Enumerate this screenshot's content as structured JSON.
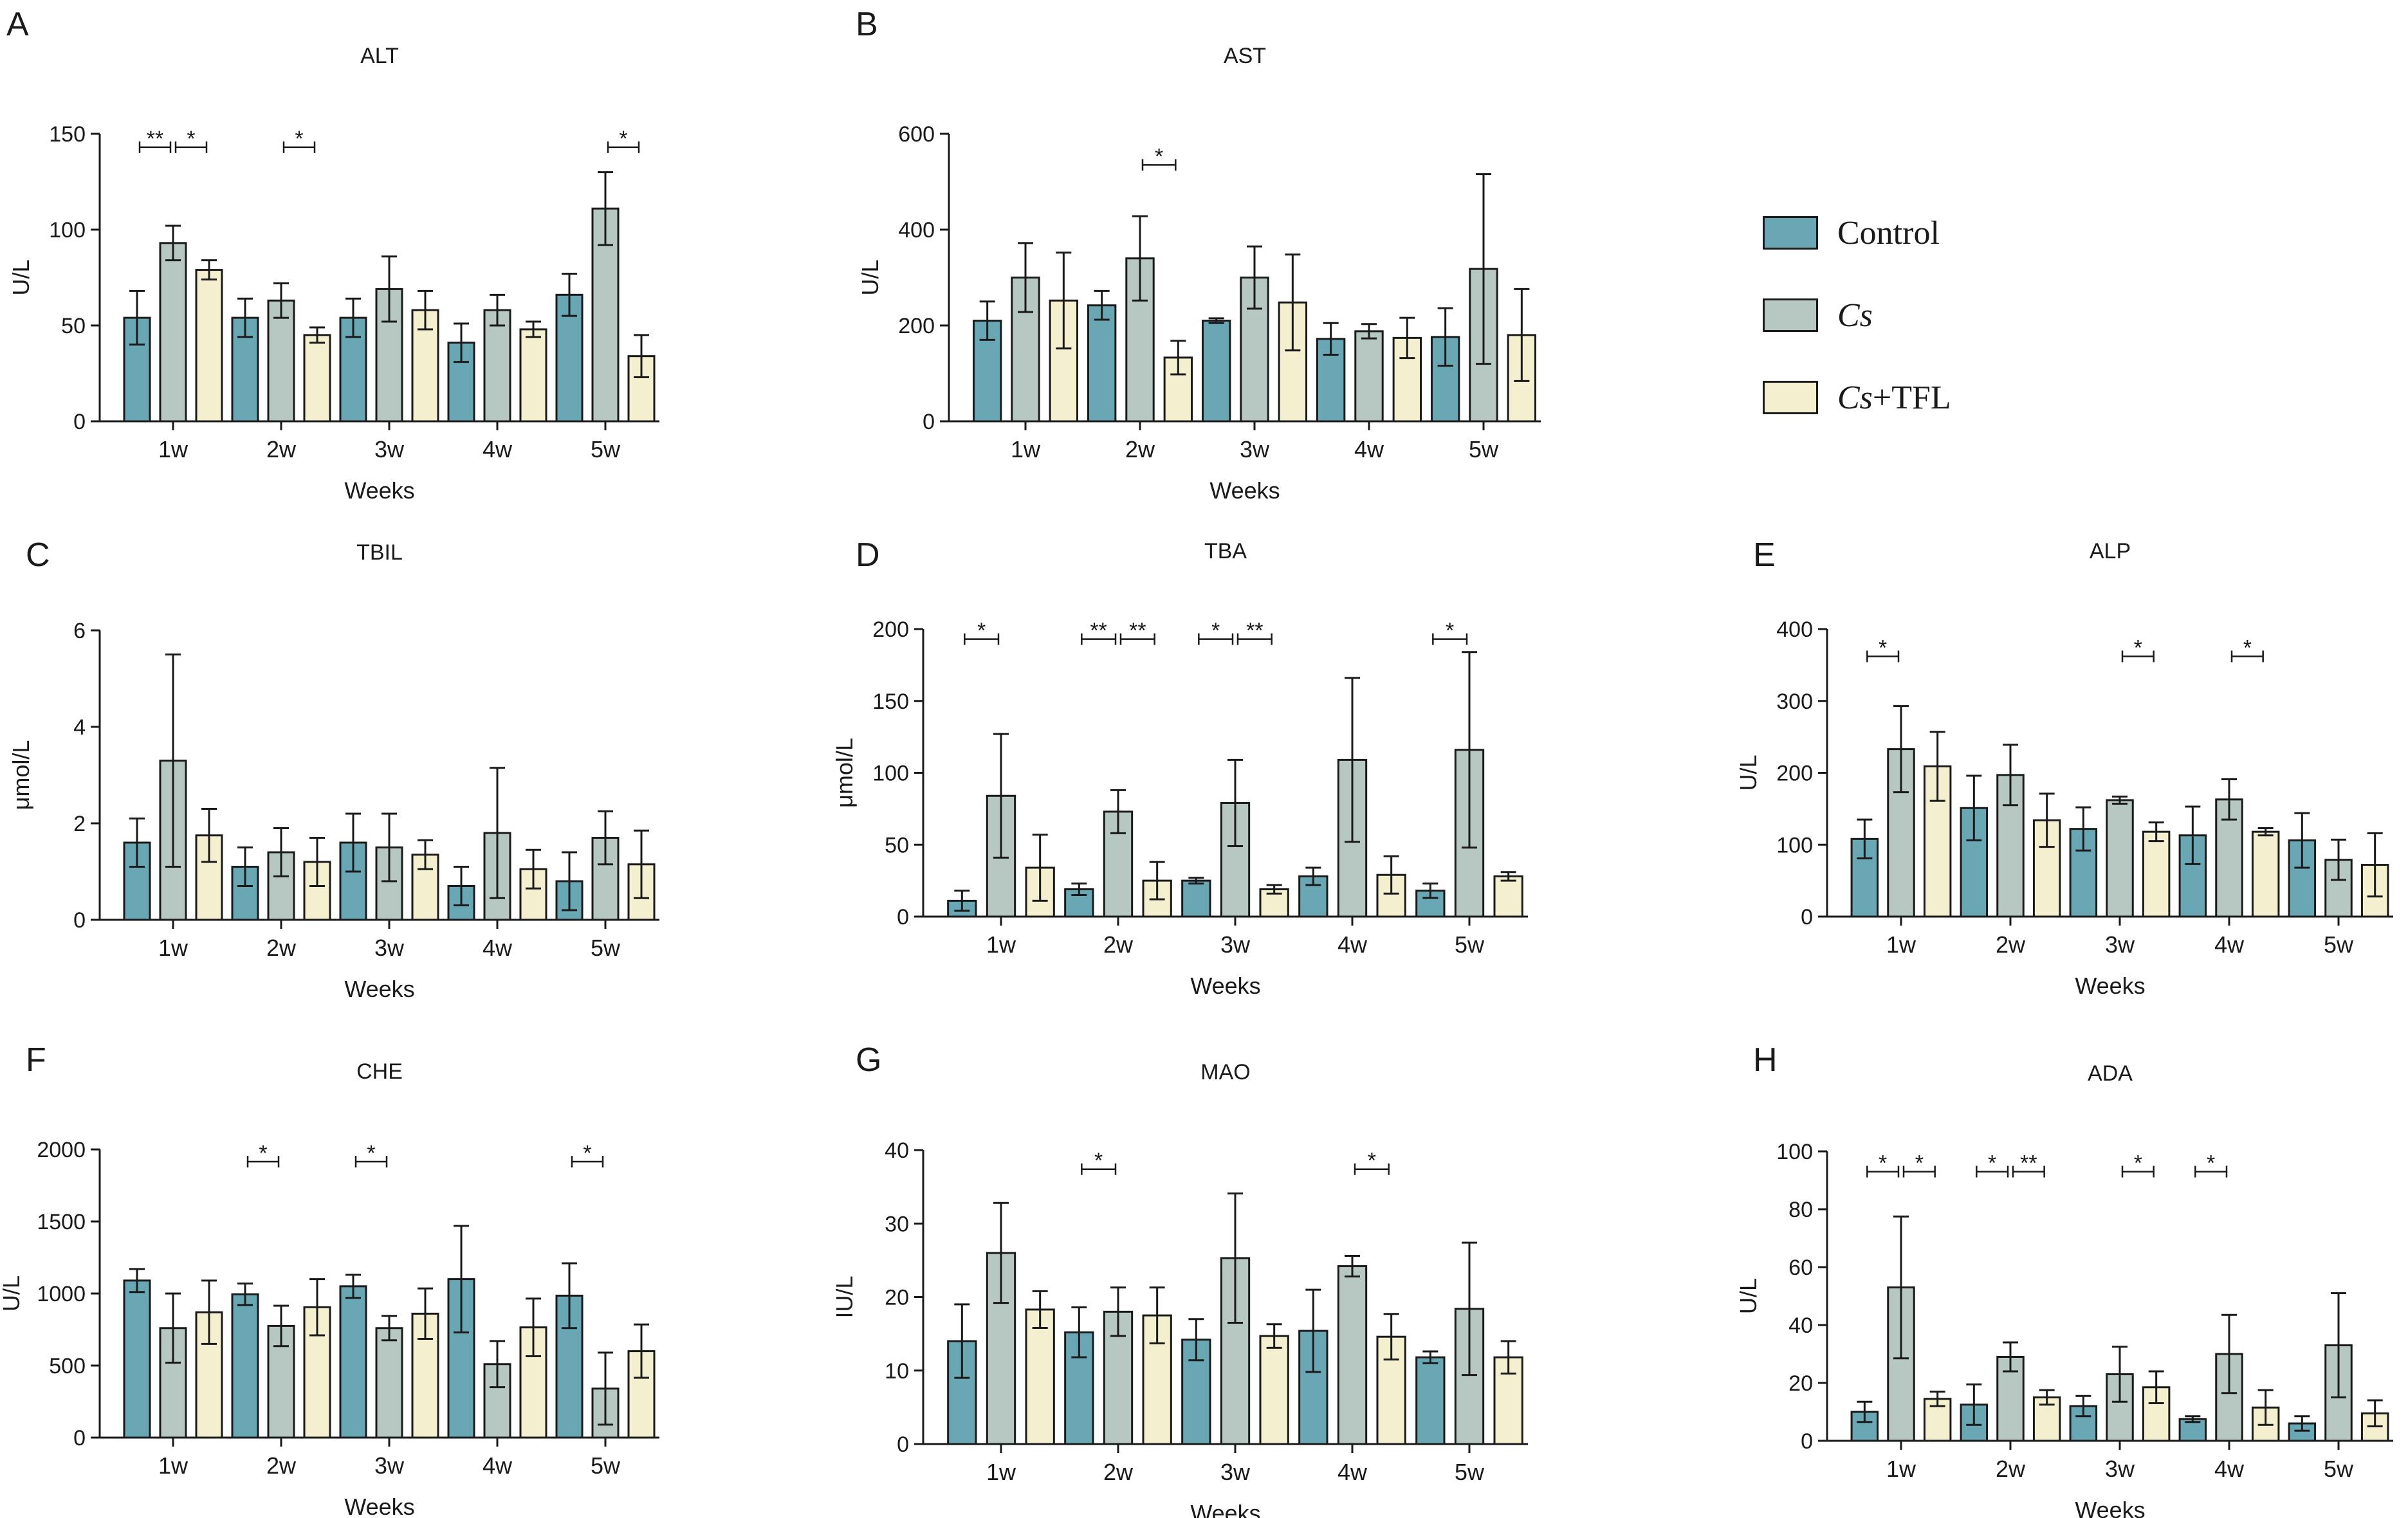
{
  "colors": {
    "control": "#6aa7b5",
    "cs": "#b7c7c1",
    "cstfl": "#f3efcf",
    "stroke": "#1a1a1a"
  },
  "legend": {
    "items": [
      {
        "label": "Control",
        "italic": "",
        "suffix": "Control",
        "color": "#6aa7b5"
      },
      {
        "label": "Cs",
        "italic": "Cs",
        "suffix": "",
        "color": "#b7c7c1"
      },
      {
        "label": "Cs+TFL",
        "italic": "Cs",
        "suffix": "+TFL",
        "color": "#f3efcf"
      }
    ]
  },
  "chart_data": [
    {
      "id": "A",
      "type": "bar",
      "title": "ALT",
      "ylabel": "U/L",
      "xlabel": "Weeks",
      "categories": [
        "1w",
        "2w",
        "3w",
        "4w",
        "5w"
      ],
      "ylim": [
        0,
        150
      ],
      "ticks": [
        0,
        50,
        100,
        150
      ],
      "series": [
        {
          "name": "Control",
          "values": [
            54,
            54,
            54,
            41,
            66
          ],
          "errors": [
            14,
            10,
            10,
            10,
            11
          ]
        },
        {
          "name": "Cs",
          "values": [
            93,
            63,
            69,
            58,
            111
          ],
          "errors": [
            9,
            9,
            17,
            8,
            19
          ]
        },
        {
          "name": "Cs+TFL",
          "values": [
            79,
            45,
            58,
            48,
            34
          ],
          "errors": [
            5,
            4,
            10,
            4,
            11
          ]
        }
      ],
      "significance": [
        {
          "group": 0,
          "from": 0,
          "to": 1,
          "label": "**",
          "y": 143
        },
        {
          "group": 0,
          "from": 1,
          "to": 2,
          "label": "*",
          "y": 143
        },
        {
          "group": 1,
          "from": 1,
          "to": 2,
          "label": "*",
          "y": 143
        },
        {
          "group": 4,
          "from": 1,
          "to": 2,
          "label": "*",
          "y": 143
        }
      ]
    },
    {
      "id": "B",
      "type": "bar",
      "title": "AST",
      "ylabel": "U/L",
      "xlabel": "Weeks",
      "categories": [
        "1w",
        "2w",
        "3w",
        "4w",
        "5w"
      ],
      "ylim": [
        0,
        600
      ],
      "ticks": [
        0,
        200,
        400,
        600
      ],
      "series": [
        {
          "name": "Control",
          "values": [
            210,
            242,
            210,
            172,
            176
          ],
          "errors": [
            40,
            30,
            5,
            33,
            60
          ]
        },
        {
          "name": "Cs",
          "values": [
            300,
            340,
            300,
            188,
            318
          ],
          "errors": [
            72,
            88,
            65,
            15,
            198
          ]
        },
        {
          "name": "Cs+TFL",
          "values": [
            252,
            133,
            248,
            174,
            180
          ],
          "errors": [
            100,
            35,
            100,
            42,
            96
          ]
        }
      ],
      "significance": [
        {
          "group": 1,
          "from": 1,
          "to": 2,
          "label": "*",
          "y": 535
        }
      ]
    },
    {
      "id": "C",
      "type": "bar",
      "title": "TBIL",
      "ylabel": "μmol/L",
      "xlabel": "Weeks",
      "categories": [
        "1w",
        "2w",
        "3w",
        "4w",
        "5w"
      ],
      "ylim": [
        0,
        6
      ],
      "ticks": [
        0,
        2,
        4,
        6
      ],
      "series": [
        {
          "name": "Control",
          "values": [
            1.6,
            1.1,
            1.6,
            0.7,
            0.8
          ],
          "errors": [
            0.5,
            0.4,
            0.6,
            0.4,
            0.6
          ]
        },
        {
          "name": "Cs",
          "values": [
            3.3,
            1.4,
            1.5,
            1.8,
            1.7
          ],
          "errors": [
            2.2,
            0.5,
            0.7,
            1.35,
            0.55
          ]
        },
        {
          "name": "Cs+TFL",
          "values": [
            1.75,
            1.2,
            1.35,
            1.05,
            1.15
          ],
          "errors": [
            0.55,
            0.5,
            0.3,
            0.4,
            0.7
          ]
        }
      ],
      "significance": []
    },
    {
      "id": "D",
      "type": "bar",
      "title": "TBA",
      "ylabel": "μmol/L",
      "xlabel": "Weeks",
      "categories": [
        "1w",
        "2w",
        "3w",
        "4w",
        "5w"
      ],
      "ylim": [
        0,
        200
      ],
      "ticks": [
        0,
        50,
        100,
        150,
        200
      ],
      "series": [
        {
          "name": "Control",
          "values": [
            11,
            19,
            25,
            28,
            18
          ],
          "errors": [
            7,
            4,
            2,
            6,
            5
          ]
        },
        {
          "name": "Cs",
          "values": [
            84,
            73,
            79,
            109,
            116
          ],
          "errors": [
            43,
            15,
            30,
            57,
            68
          ]
        },
        {
          "name": "Cs+TFL",
          "values": [
            34,
            25,
            19,
            29,
            28
          ],
          "errors": [
            23,
            13,
            3,
            13,
            3
          ]
        }
      ],
      "significance": [
        {
          "group": 0,
          "from": 0,
          "to": 1,
          "label": "*",
          "y": 193
        },
        {
          "group": 1,
          "from": 0,
          "to": 1,
          "label": "**",
          "y": 193
        },
        {
          "group": 1,
          "from": 1,
          "to": 2,
          "label": "**",
          "y": 193
        },
        {
          "group": 2,
          "from": 0,
          "to": 1,
          "label": "*",
          "y": 193
        },
        {
          "group": 2,
          "from": 1,
          "to": 2,
          "label": "**",
          "y": 193
        },
        {
          "group": 4,
          "from": 0,
          "to": 1,
          "label": "*",
          "y": 193
        }
      ]
    },
    {
      "id": "E",
      "type": "bar",
      "title": "ALP",
      "ylabel": "U/L",
      "xlabel": "Weeks",
      "categories": [
        "1w",
        "2w",
        "3w",
        "4w",
        "5w"
      ],
      "ylim": [
        0,
        400
      ],
      "ticks": [
        0,
        100,
        200,
        300,
        400
      ],
      "series": [
        {
          "name": "Control",
          "values": [
            108,
            151,
            122,
            113,
            106
          ],
          "errors": [
            27,
            45,
            30,
            40,
            38
          ]
        },
        {
          "name": "Cs",
          "values": [
            233,
            197,
            162,
            163,
            79
          ],
          "errors": [
            60,
            42,
            5,
            28,
            28
          ]
        },
        {
          "name": "Cs+TFL",
          "values": [
            209,
            134,
            118,
            118,
            72
          ],
          "errors": [
            48,
            37,
            13,
            5,
            44
          ]
        }
      ],
      "significance": [
        {
          "group": 0,
          "from": 0,
          "to": 1,
          "label": "*",
          "y": 362
        },
        {
          "group": 2,
          "from": 1,
          "to": 2,
          "label": "*",
          "y": 362
        },
        {
          "group": 3,
          "from": 1,
          "to": 2,
          "label": "*",
          "y": 362
        }
      ]
    },
    {
      "id": "F",
      "type": "bar",
      "title": "CHE",
      "ylabel": "U/L",
      "xlabel": "Weeks",
      "categories": [
        "1w",
        "2w",
        "3w",
        "4w",
        "5w"
      ],
      "ylim": [
        0,
        2000
      ],
      "ticks": [
        0,
        500,
        1000,
        1500,
        2000
      ],
      "series": [
        {
          "name": "Control",
          "values": [
            1090,
            995,
            1050,
            1100,
            985
          ],
          "errors": [
            80,
            75,
            80,
            370,
            225
          ]
        },
        {
          "name": "Cs",
          "values": [
            760,
            775,
            760,
            510,
            340
          ],
          "errors": [
            240,
            140,
            85,
            160,
            250
          ]
        },
        {
          "name": "Cs+TFL",
          "values": [
            870,
            905,
            860,
            765,
            600
          ],
          "errors": [
            220,
            195,
            175,
            200,
            185
          ]
        }
      ],
      "significance": [
        {
          "group": 1,
          "from": 0,
          "to": 1,
          "label": "*",
          "y": 1915
        },
        {
          "group": 2,
          "from": 0,
          "to": 1,
          "label": "*",
          "y": 1915
        },
        {
          "group": 4,
          "from": 0,
          "to": 1,
          "label": "*",
          "y": 1915
        }
      ]
    },
    {
      "id": "G",
      "type": "bar",
      "title": "MAO",
      "ylabel": "IU/L",
      "xlabel": "Weeks",
      "categories": [
        "1w",
        "2w",
        "3w",
        "4w",
        "5w"
      ],
      "ylim": [
        0,
        40
      ],
      "ticks": [
        0,
        10,
        20,
        30,
        40
      ],
      "series": [
        {
          "name": "Control",
          "values": [
            14,
            15.2,
            14.2,
            15.4,
            11.8
          ],
          "errors": [
            5,
            3.4,
            2.8,
            5.6,
            0.8
          ]
        },
        {
          "name": "Cs",
          "values": [
            26,
            18,
            25.3,
            24.2,
            18.4
          ],
          "errors": [
            6.8,
            3.3,
            8.8,
            1.4,
            9
          ]
        },
        {
          "name": "Cs+TFL",
          "values": [
            18.3,
            17.5,
            14.7,
            14.6,
            11.8
          ],
          "errors": [
            2.5,
            3.8,
            1.6,
            3.1,
            2.2
          ]
        }
      ],
      "significance": [
        {
          "group": 1,
          "from": 0,
          "to": 1,
          "label": "*",
          "y": 37.4
        },
        {
          "group": 3,
          "from": 1,
          "to": 2,
          "label": "*",
          "y": 37.4
        }
      ]
    },
    {
      "id": "H",
      "type": "bar",
      "title": "ADA",
      "ylabel": "U/L",
      "xlabel": "Weeks",
      "categories": [
        "1w",
        "2w",
        "3w",
        "4w",
        "5w"
      ],
      "ylim": [
        0,
        100
      ],
      "ticks": [
        0,
        20,
        40,
        60,
        80,
        100
      ],
      "series": [
        {
          "name": "Control",
          "values": [
            10,
            12.5,
            12,
            7.5,
            6
          ],
          "errors": [
            3.5,
            7,
            3.5,
            1,
            2.5
          ]
        },
        {
          "name": "Cs",
          "values": [
            53,
            29,
            23,
            30,
            33
          ],
          "errors": [
            24.5,
            5,
            9.5,
            13.5,
            18
          ]
        },
        {
          "name": "Cs+TFL",
          "values": [
            14.5,
            15,
            18.5,
            11.5,
            9.5
          ],
          "errors": [
            2.5,
            2.5,
            5.5,
            6,
            4.5
          ]
        }
      ],
      "significance": [
        {
          "group": 0,
          "from": 0,
          "to": 1,
          "label": "*",
          "y": 93
        },
        {
          "group": 0,
          "from": 1,
          "to": 2,
          "label": "*",
          "y": 93
        },
        {
          "group": 1,
          "from": 0,
          "to": 1,
          "label": "*",
          "y": 93
        },
        {
          "group": 1,
          "from": 1,
          "to": 2,
          "label": "**",
          "y": 93
        },
        {
          "group": 2,
          "from": 1,
          "to": 2,
          "label": "*",
          "y": 93
        },
        {
          "group": 3,
          "from": 0,
          "to": 1,
          "label": "*",
          "y": 93
        }
      ]
    }
  ]
}
